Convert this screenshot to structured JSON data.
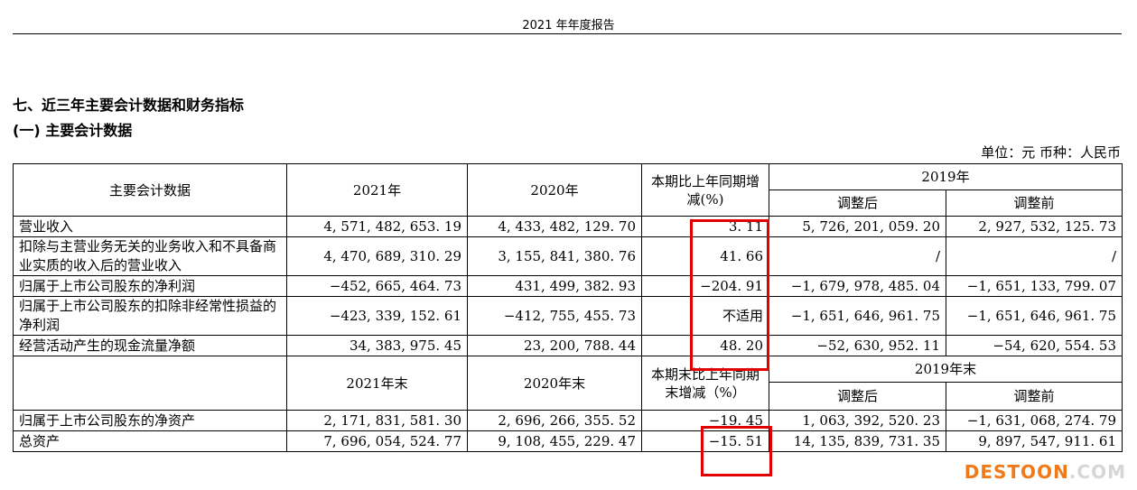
{
  "header": {
    "title": "2021 年年度报告"
  },
  "section": {
    "heading": "七、近三年主要会计数据和财务指标",
    "subheading": "(一) 主要会计数据",
    "unit_note": "单位：元 币种：人民币"
  },
  "table1": {
    "col_label": "主要会计数据",
    "col_2021": "2021年",
    "col_2020": "2020年",
    "col_change": "本期比上年同期增减(%)",
    "col_2019": "2019年",
    "col_adjusted_after": "调整后",
    "col_adjusted_before": "调整前",
    "rows": [
      {
        "label": "营业收入",
        "y2021": "4, 571, 482, 653. 19",
        "y2020": "4, 433, 482, 129. 70",
        "change": "3. 11",
        "after": "5, 726, 201, 059. 20",
        "before": "2, 927, 532, 125. 73"
      },
      {
        "label": "扣除与主营业务无关的业务收入和不具备商业实质的收入后的营业收入",
        "y2021": "4, 470, 689, 310. 29",
        "y2020": "3, 155, 841, 380. 76",
        "change": "41. 66",
        "after": "/",
        "before": "/"
      },
      {
        "label": "归属于上市公司股东的净利润",
        "y2021": "−452, 665, 464. 73",
        "y2020": "431, 499, 382. 93",
        "change": "−204. 91",
        "after": "−1, 679, 978, 485. 04",
        "before": "−1, 651, 133, 799. 07"
      },
      {
        "label": "归属于上市公司股东的扣除非经常性损益的净利润",
        "y2021": "−423, 339, 152. 61",
        "y2020": "−412, 755, 455. 73",
        "change": "不适用",
        "after": "−1, 651, 646, 961. 75",
        "before": "−1, 651, 646, 961. 75"
      },
      {
        "label": "经营活动产生的现金流量净额",
        "y2021": "34, 383, 975. 45",
        "y2020": "23, 200, 788. 44",
        "change": "48. 20",
        "after": "−52, 630, 952. 11",
        "before": "−54, 620, 554. 53"
      }
    ]
  },
  "table2": {
    "col_2021": "2021年末",
    "col_2020": "2020年末",
    "col_change": "本期末比上年同期末增减（%）",
    "col_2019": "2019年末",
    "col_adjusted_after": "调整后",
    "col_adjusted_before": "调整前",
    "rows": [
      {
        "label": "归属于上市公司股东的净资产",
        "y2021": "2, 171, 831, 581. 30",
        "y2020": "2, 696, 266, 355. 52",
        "change": "−19. 45",
        "after": "1, 063, 392, 520. 23",
        "before": "−1, 631, 068, 274. 79"
      },
      {
        "label": "总资产",
        "y2021": "7, 696, 054, 524. 77",
        "y2020": "9, 108, 455, 229. 47",
        "change": "−15. 51",
        "after": "14, 135, 839, 731. 35",
        "before": "9, 897, 547, 911. 61"
      }
    ]
  },
  "watermark": {
    "part1": "DESTOON",
    "part2": ".COM"
  },
  "colors": {
    "highlight_border": "#e00000",
    "watermark": "#f07a1a"
  }
}
